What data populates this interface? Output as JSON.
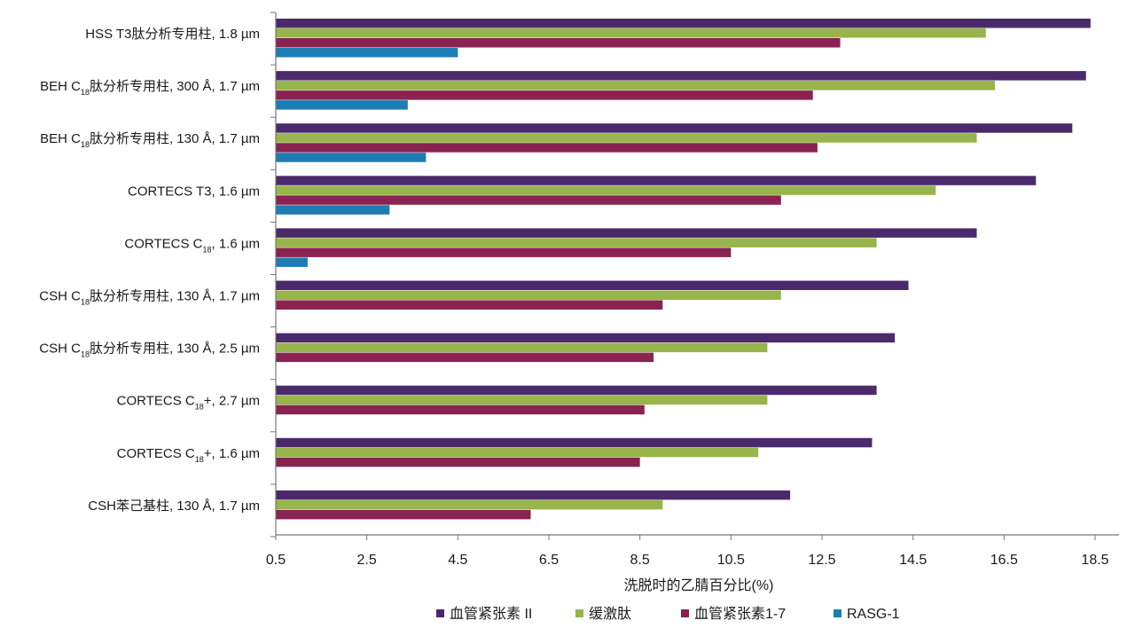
{
  "chart_data": {
    "type": "bar",
    "orientation": "horizontal",
    "categories": [
      {
        "pre": "HSS T3肽分析专用柱, 1.8 µm",
        "sub": "",
        "post": ""
      },
      {
        "pre": "BEH C",
        "sub": "18",
        "post": "肽分析专用柱, 300 Å, 1.7 µm"
      },
      {
        "pre": "BEH C",
        "sub": "18",
        "post": "肽分析专用柱, 130 Å, 1.7 µm"
      },
      {
        "pre": "CORTECS T3, 1.6 µm",
        "sub": "",
        "post": ""
      },
      {
        "pre": "CORTECS C",
        "sub": "18",
        "post": ", 1.6 µm"
      },
      {
        "pre": "CSH C",
        "sub": "18",
        "post": "肽分析专用柱, 130 Å, 1.7 µm"
      },
      {
        "pre": "CSH C",
        "sub": "18",
        "post": "肽分析专用柱, 130 Å, 2.5 µm"
      },
      {
        "pre": "CORTECS C",
        "sub": "18",
        "post": "+, 2.7 µm"
      },
      {
        "pre": "CORTECS C",
        "sub": "18",
        "post": "+, 1.6 µm"
      },
      {
        "pre": "CSH苯己基柱, 130 Å, 1.7 µm",
        "sub": "",
        "post": ""
      }
    ],
    "series": [
      {
        "name": "血管紧张素 II",
        "color": "#4b2a6b",
        "values": [
          18.4,
          18.3,
          18.0,
          17.2,
          15.9,
          14.4,
          14.1,
          13.7,
          13.6,
          11.8
        ]
      },
      {
        "name": "缓激肽",
        "color": "#97b54a",
        "values": [
          16.1,
          16.3,
          15.9,
          15.0,
          13.7,
          11.6,
          11.3,
          11.3,
          11.1,
          9.0
        ]
      },
      {
        "name": "血管紧张素1-7",
        "color": "#8a2252",
        "values": [
          12.9,
          12.3,
          12.4,
          11.6,
          10.5,
          9.0,
          8.8,
          8.6,
          8.5,
          6.1
        ]
      },
      {
        "name": "RASG-1",
        "color": "#1b7db3",
        "values": [
          4.5,
          3.4,
          3.8,
          3.0,
          1.2,
          null,
          null,
          null,
          null,
          null
        ]
      }
    ],
    "xlabel": "洗脱时的乙腈百分比(%)",
    "xticks": [
      "0.5",
      "2.5",
      "4.5",
      "6.5",
      "8.5",
      "10.5",
      "12.5",
      "14.5",
      "16.5",
      "18.5"
    ],
    "xlim": [
      0.5,
      18.5
    ],
    "grid": false,
    "legend": "bottom"
  }
}
